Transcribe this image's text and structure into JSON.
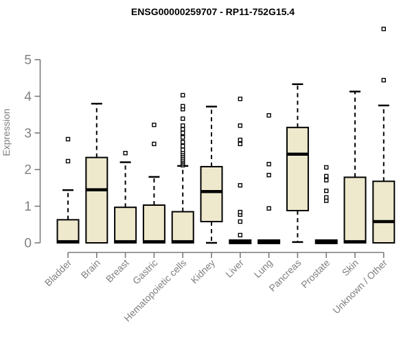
{
  "window": {
    "background": "#ffffff"
  },
  "chart_data": {
    "type": "boxplot",
    "title": "ENSG00000259707 - RP11-752G15.4",
    "xlabel": "",
    "ylabel": "Expression",
    "ylim": [
      0,
      5.9
    ],
    "yticks": [
      0,
      1,
      2,
      3,
      4,
      5
    ],
    "grid": false,
    "legend": null,
    "categories": [
      "Bladder",
      "Brain",
      "Breast",
      "Gastric",
      "Hematopoietic cells",
      "Kidney",
      "Liver",
      "Lung",
      "Pancreas",
      "Prostate",
      "Skin",
      "Unknown / Other"
    ],
    "series": [
      {
        "name": "Bladder",
        "q1": 0,
        "median": 0.03,
        "q3": 0.63,
        "whisker_low": 0,
        "whisker_high": 1.44,
        "outliers": [
          2.23,
          2.83
        ]
      },
      {
        "name": "Brain",
        "q1": 0,
        "median": 1.45,
        "q3": 2.33,
        "whisker_low": 0,
        "whisker_high": 3.8,
        "outliers": []
      },
      {
        "name": "Breast",
        "q1": 0,
        "median": 0.03,
        "q3": 0.97,
        "whisker_low": 0,
        "whisker_high": 2.2,
        "outliers": [
          2.45
        ]
      },
      {
        "name": "Gastric",
        "q1": 0,
        "median": 0.03,
        "q3": 1.03,
        "whisker_low": 0,
        "whisker_high": 1.8,
        "outliers": [
          2.7,
          3.22
        ]
      },
      {
        "name": "Hematopoietic cells",
        "q1": 0,
        "median": 0.03,
        "q3": 0.85,
        "whisker_low": 0,
        "whisker_high": 2.1,
        "outliers": [
          2.12,
          2.16,
          2.2,
          2.24,
          2.28,
          2.33,
          2.38,
          2.43,
          2.48,
          2.54,
          2.64,
          2.75,
          2.88,
          3.0,
          3.1,
          3.2,
          3.39,
          3.65,
          3.73,
          4.03
        ]
      },
      {
        "name": "Kidney",
        "q1": 0.58,
        "median": 1.4,
        "q3": 2.08,
        "whisker_low": 0,
        "whisker_high": 3.72,
        "outliers": []
      },
      {
        "name": "Liver",
        "q1": 0,
        "median": 0.03,
        "q3": 0.03,
        "whisker_low": 0,
        "whisker_high": 0.03,
        "outliers": [
          0.21,
          0.58,
          0.77,
          0.84,
          1.57,
          2.7,
          2.81,
          3.2,
          3.93
        ]
      },
      {
        "name": "Lung",
        "q1": 0,
        "median": 0.03,
        "q3": 0.03,
        "whisker_low": 0,
        "whisker_high": 0.03,
        "outliers": [
          0.94,
          1.85,
          2.15,
          3.48
        ]
      },
      {
        "name": "Pancreas",
        "q1": 0.88,
        "median": 2.42,
        "q3": 3.15,
        "whisker_low": 0.02,
        "whisker_high": 4.33,
        "outliers": []
      },
      {
        "name": "Prostate",
        "q1": 0,
        "median": 0.03,
        "q3": 0.03,
        "whisker_low": 0,
        "whisker_high": 0.03,
        "outliers": [
          1.15,
          1.24,
          1.42,
          1.71,
          1.82,
          2.06
        ]
      },
      {
        "name": "Skin",
        "q1": 0,
        "median": 0.03,
        "q3": 1.79,
        "whisker_low": 0,
        "whisker_high": 4.13,
        "outliers": []
      },
      {
        "name": "Unknown / Other",
        "q1": 0,
        "median": 0.58,
        "q3": 1.68,
        "whisker_low": 0,
        "whisker_high": 3.75,
        "outliers": [
          4.44,
          5.84
        ]
      }
    ],
    "colors": {
      "box_fill": "#EEE8CD",
      "box_border": "#000000",
      "median": "#000000",
      "whisker": "#000000",
      "outlier_fill": "#FFFFFF",
      "outlier_border": "#000000",
      "axis": "#7a7a7a",
      "tick_label": "#7f7f7f",
      "title": "#000000",
      "background": "#FFFFFF"
    }
  }
}
